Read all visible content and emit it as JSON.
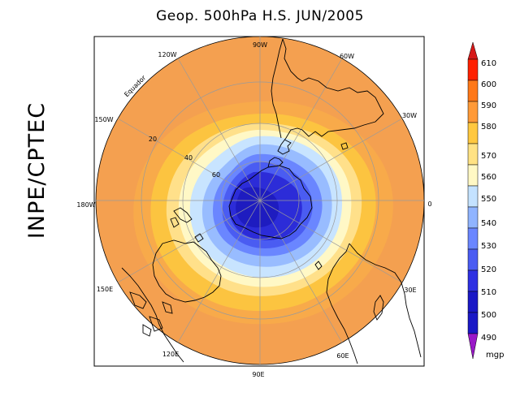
{
  "title": "Geop. 500hPa H.S. JUN/2005",
  "side_label": "INPE/CPTEC",
  "longitude_labels": {
    "lon_90w": "90W",
    "lon_60w": "60W",
    "lon_30w": "30W",
    "lon_0": "0",
    "lon_30e": "30E",
    "lon_60e": "60E",
    "lon_90e": "90E",
    "lon_120e": "120E",
    "lon_150e": "150E",
    "lon_180w": "180W",
    "lon_150w": "150W",
    "lon_120w": "120W"
  },
  "latitude_labels": {
    "equator": "Equador",
    "lat_20": "20",
    "lat_40": "40",
    "lat_60": "60"
  },
  "colorbar": {
    "unit": "mgp",
    "levels": [
      "610",
      "600",
      "590",
      "580",
      "570",
      "560",
      "550",
      "540",
      "530",
      "520",
      "510",
      "500",
      "490"
    ],
    "colors": {
      "over": "#d61818",
      "c605": "#ff2000",
      "c595": "#ff7818",
      "c585": "#ff9a38",
      "c575": "#ffc840",
      "c565": "#ffe284",
      "c555": "#fff8c4",
      "c545": "#c4e2ff",
      "c535": "#90b4ff",
      "c525": "#6a86ff",
      "c515": "#4a5cf2",
      "c505": "#2e30e2",
      "c495": "#1a18c6",
      "under": "#9a18c8"
    }
  },
  "map_colors": {
    "ocean_outer": "#f4a050",
    "c580": "#f8aa4a",
    "c570": "#fcc440",
    "c560": "#ffe08a",
    "c550": "#fff8c6",
    "c540": "#c8e4ff",
    "c530": "#98bcff",
    "c520": "#6a86ff",
    "c510": "#4a5cf2",
    "c500": "#2c2cd8",
    "c495": "#1e1cc0"
  }
}
